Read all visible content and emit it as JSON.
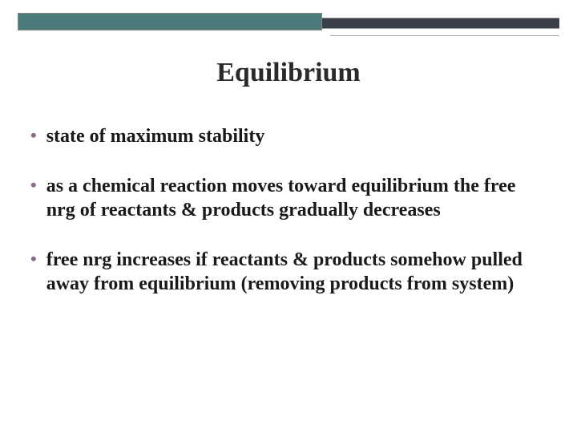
{
  "slide": {
    "title": "Equilibrium",
    "bullets": [
      "state of maximum stability",
      "as a chemical reaction moves toward equilibrium the free nrg of reactants & products gradually decreases",
      "free nrg increases if reactants & products somehow pulled away from equilibrium (removing products from system)"
    ]
  },
  "style": {
    "title_fontsize": 34,
    "body_fontsize": 24,
    "title_color": "#2a2a2a",
    "body_color": "#1a1a1a",
    "bullet_color": "#8a6a8a",
    "bar_teal_color": "#4a7a7a",
    "bar_dark_color": "#3a3f4a",
    "background_color": "#ffffff",
    "font_family": "Georgia"
  }
}
